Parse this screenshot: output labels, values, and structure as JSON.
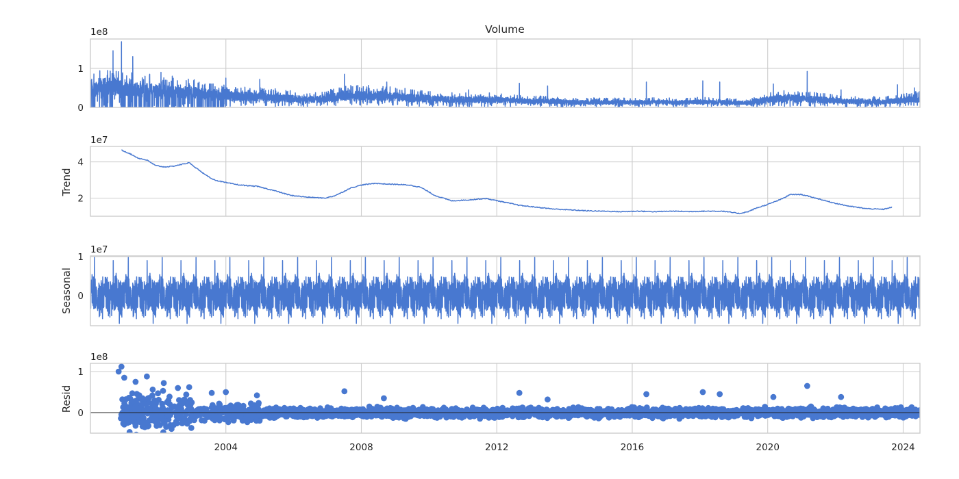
{
  "chart_data": [
    {
      "type": "line",
      "panel": "observed",
      "title": "Volume",
      "ylabel": "",
      "y_offset_label": "1e8",
      "x_domain": [
        "2000-01-01",
        "2024-06-30"
      ],
      "ylim": [
        0,
        1.75
      ],
      "yticks": [
        0,
        1
      ],
      "ytick_labels": [
        "0",
        "1"
      ],
      "grid": true,
      "x": [
        "2000-01",
        "2000-07",
        "2001-01",
        "2001-07",
        "2002-01",
        "2002-07",
        "2003-01",
        "2003-07",
        "2004-01",
        "2004-07",
        "2005-01",
        "2005-07",
        "2006-01",
        "2006-07",
        "2007-01",
        "2007-07",
        "2008-01",
        "2008-07",
        "2009-01",
        "2009-07",
        "2010-01",
        "2010-07",
        "2011-01",
        "2011-07",
        "2012-01",
        "2012-07",
        "2013-01",
        "2013-07",
        "2014-01",
        "2014-07",
        "2015-01",
        "2015-07",
        "2016-01",
        "2016-07",
        "2017-01",
        "2017-07",
        "2018-01",
        "2018-07",
        "2019-01",
        "2019-07",
        "2020-01",
        "2020-07",
        "2021-01",
        "2021-07",
        "2022-01",
        "2022-07",
        "2023-01",
        "2023-07",
        "2024-01",
        "2024-06"
      ],
      "values": [
        0.45,
        0.55,
        0.5,
        0.45,
        0.42,
        0.4,
        0.38,
        0.33,
        0.3,
        0.28,
        0.27,
        0.25,
        0.22,
        0.2,
        0.23,
        0.3,
        0.3,
        0.3,
        0.27,
        0.25,
        0.22,
        0.2,
        0.2,
        0.2,
        0.2,
        0.17,
        0.16,
        0.15,
        0.14,
        0.13,
        0.13,
        0.13,
        0.13,
        0.14,
        0.13,
        0.13,
        0.14,
        0.13,
        0.12,
        0.12,
        0.2,
        0.24,
        0.22,
        0.2,
        0.17,
        0.15,
        0.15,
        0.15,
        0.18,
        0.22
      ],
      "peaks": [
        {
          "x": "2000-09",
          "y": 1.45
        },
        {
          "x": "2000-12",
          "y": 1.68
        },
        {
          "x": "2001-04",
          "y": 1.3
        },
        {
          "x": "2001-10",
          "y": 0.85
        },
        {
          "x": "2002-02",
          "y": 0.9
        },
        {
          "x": "2002-06",
          "y": 0.8
        },
        {
          "x": "2003-08",
          "y": 0.6
        },
        {
          "x": "2004-01",
          "y": 0.75
        },
        {
          "x": "2005-01",
          "y": 0.72
        },
        {
          "x": "2007-07",
          "y": 0.85
        },
        {
          "x": "2008-10",
          "y": 0.65
        },
        {
          "x": "2011-03",
          "y": 0.45
        },
        {
          "x": "2012-09",
          "y": 0.62
        },
        {
          "x": "2013-07",
          "y": 0.55
        },
        {
          "x": "2016-06",
          "y": 0.65
        },
        {
          "x": "2018-02",
          "y": 0.68
        },
        {
          "x": "2018-08",
          "y": 0.65
        },
        {
          "x": "2020-03",
          "y": 0.6
        },
        {
          "x": "2021-03",
          "y": 0.92
        },
        {
          "x": "2022-03",
          "y": 0.45
        },
        {
          "x": "2023-11",
          "y": 0.58
        },
        {
          "x": "2024-05",
          "y": 0.5
        }
      ]
    },
    {
      "type": "line",
      "panel": "trend",
      "title": "",
      "ylabel": "Trend",
      "y_offset_label": "1e7",
      "x_domain": [
        "2000-01-01",
        "2024-06-30"
      ],
      "ylim": [
        1.0,
        4.85
      ],
      "yticks": [
        2,
        4
      ],
      "ytick_labels": [
        "2",
        "4"
      ],
      "grid": true,
      "x": [
        "2000-12",
        "2001-03",
        "2001-06",
        "2001-09",
        "2001-12",
        "2002-03",
        "2002-06",
        "2002-09",
        "2002-12",
        "2003-03",
        "2003-06",
        "2003-09",
        "2004-01",
        "2004-06",
        "2004-12",
        "2005-06",
        "2005-12",
        "2006-06",
        "2006-12",
        "2007-03",
        "2007-06",
        "2007-09",
        "2008-01",
        "2008-06",
        "2008-09",
        "2009-01",
        "2009-06",
        "2009-10",
        "2010-03",
        "2010-09",
        "2011-03",
        "2011-09",
        "2012-03",
        "2012-09",
        "2013-03",
        "2013-09",
        "2014-03",
        "2014-09",
        "2015-03",
        "2015-09",
        "2016-03",
        "2016-09",
        "2017-03",
        "2017-09",
        "2018-03",
        "2018-09",
        "2019-03",
        "2019-06",
        "2019-09",
        "2020-01",
        "2020-06",
        "2020-09",
        "2021-01",
        "2021-06",
        "2021-12",
        "2022-06",
        "2022-12",
        "2023-06",
        "2023-09"
      ],
      "values": [
        4.65,
        4.45,
        4.2,
        4.1,
        3.8,
        3.72,
        3.75,
        3.85,
        3.95,
        3.6,
        3.25,
        3.0,
        2.85,
        2.72,
        2.65,
        2.42,
        2.15,
        2.05,
        2.0,
        2.1,
        2.3,
        2.55,
        2.72,
        2.82,
        2.78,
        2.76,
        2.72,
        2.6,
        2.15,
        1.85,
        1.9,
        1.98,
        1.8,
        1.6,
        1.5,
        1.4,
        1.35,
        1.3,
        1.28,
        1.25,
        1.28,
        1.25,
        1.28,
        1.26,
        1.28,
        1.28,
        1.15,
        1.25,
        1.45,
        1.65,
        1.95,
        2.2,
        2.2,
        2.0,
        1.75,
        1.55,
        1.42,
        1.38,
        1.5
      ]
    },
    {
      "type": "line",
      "panel": "seasonal",
      "title": "",
      "ylabel": "Seasonal",
      "y_offset_label": "1e7",
      "x_domain": [
        "2000-01-01",
        "2024-06-30"
      ],
      "ylim": [
        -0.78,
        1.02
      ],
      "yticks": [
        0,
        1
      ],
      "ytick_labels": [
        "0",
        "1"
      ],
      "grid": true,
      "period_years": 1,
      "amplitude_range": [
        -0.72,
        0.98
      ]
    },
    {
      "type": "scatter",
      "panel": "resid",
      "title": "",
      "ylabel": "Resid",
      "y_offset_label": "1e8",
      "x_domain": [
        "2000-01-01",
        "2024-06-30"
      ],
      "ylim": [
        -0.5,
        1.2
      ],
      "yticks": [
        0,
        1
      ],
      "ytick_labels": [
        "0",
        "1"
      ],
      "zero_line": true,
      "grid": true,
      "outliers": [
        {
          "x": "2000-11",
          "y": 1.0
        },
        {
          "x": "2000-12",
          "y": 1.12
        },
        {
          "x": "2001-01",
          "y": 0.85
        },
        {
          "x": "2001-05",
          "y": 0.75
        },
        {
          "x": "2001-09",
          "y": 0.88
        },
        {
          "x": "2002-03",
          "y": 0.72
        },
        {
          "x": "2002-08",
          "y": 0.6
        },
        {
          "x": "2002-12",
          "y": 0.62
        },
        {
          "x": "2003-08",
          "y": 0.48
        },
        {
          "x": "2004-01",
          "y": 0.5
        },
        {
          "x": "2004-12",
          "y": 0.42
        },
        {
          "x": "2007-07",
          "y": 0.52
        },
        {
          "x": "2008-09",
          "y": 0.35
        },
        {
          "x": "2012-09",
          "y": 0.48
        },
        {
          "x": "2013-07",
          "y": 0.32
        },
        {
          "x": "2016-06",
          "y": 0.45
        },
        {
          "x": "2018-02",
          "y": 0.5
        },
        {
          "x": "2018-08",
          "y": 0.45
        },
        {
          "x": "2020-03",
          "y": 0.38
        },
        {
          "x": "2021-03",
          "y": 0.65
        },
        {
          "x": "2022-03",
          "y": 0.38
        }
      ]
    }
  ],
  "x_ticks": [
    {
      "x": "2004-01-01",
      "label": "2004"
    },
    {
      "x": "2008-01-01",
      "label": "2008"
    },
    {
      "x": "2012-01-01",
      "label": "2012"
    },
    {
      "x": "2016-01-01",
      "label": "2016"
    },
    {
      "x": "2020-01-01",
      "label": "2020"
    },
    {
      "x": "2024-01-01",
      "label": "2024"
    }
  ],
  "colors": {
    "series": "#4878d0",
    "grid": "#cccccc",
    "text": "#262626",
    "zero_line": "#222222"
  }
}
